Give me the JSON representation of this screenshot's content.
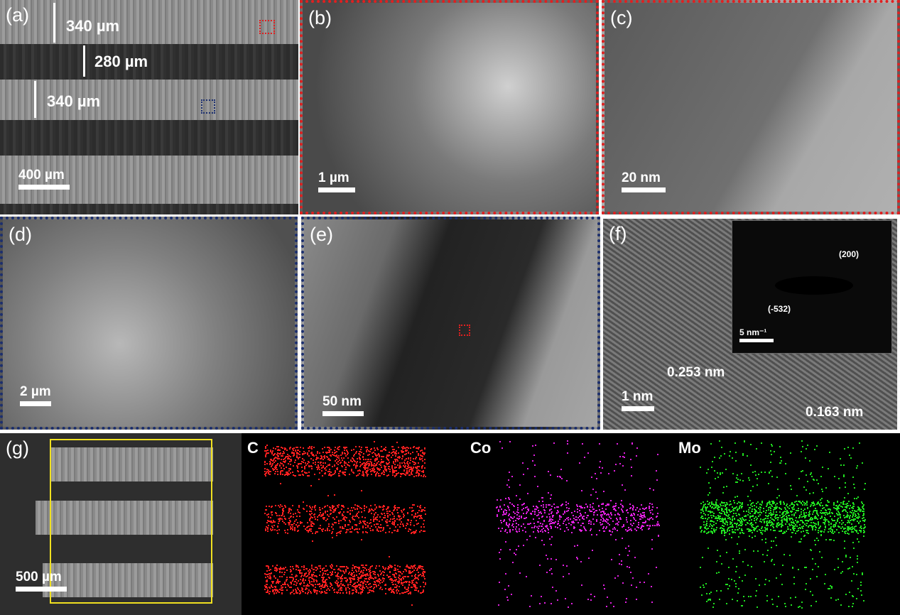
{
  "panels": {
    "a": {
      "label": "(a)",
      "dims": [
        "340 µm",
        "280 µm",
        "340 µm"
      ],
      "scale": "400 µm"
    },
    "b": {
      "label": "(b)",
      "scale": "1 µm"
    },
    "c": {
      "label": "(c)",
      "scale": "20 nm"
    },
    "d": {
      "label": "(d)",
      "scale": "2 µm"
    },
    "e": {
      "label": "(e)",
      "scale": "50 nm"
    },
    "f": {
      "label": "(f)",
      "scale": "1 nm",
      "spacings": [
        "0.253 nm",
        "0.163 nm"
      ],
      "inset": {
        "planes": [
          "(200)",
          "(-532)"
        ],
        "scale": "5 nm⁻¹"
      }
    },
    "g": {
      "label": "(g)",
      "scale": "500 µm"
    }
  },
  "eds": [
    {
      "element": "C",
      "color": "#ff2020"
    },
    {
      "element": "Co",
      "color": "#e020e0"
    },
    {
      "element": "Mo",
      "color": "#20e020"
    }
  ],
  "colors": {
    "zoom_box_red": "#e02020",
    "zoom_box_blue": "#1c2f6e",
    "selection_box": "#f0e020"
  }
}
